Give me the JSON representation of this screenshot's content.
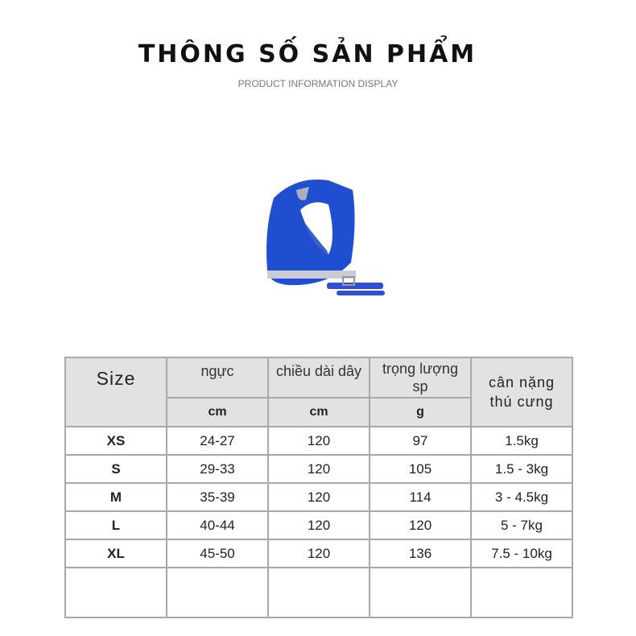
{
  "header": {
    "title": "THÔNG SỐ SẢN PHẨM",
    "subtitle": "PRODUCT INFORMATION DISPLAY"
  },
  "product": {
    "image": "blue mesh dog harness with leash",
    "color": "#1f4fd0"
  },
  "table": {
    "headers": {
      "size": "Size",
      "chest": "ngực",
      "leash_length": "chiều dài dây",
      "weight_line1": "trọng lượng",
      "weight_line2": "sp",
      "pet_weight_line1": "cân nặng",
      "pet_weight_line2": "thú cưng"
    },
    "units": {
      "chest": "cm",
      "leash_length": "cm",
      "weight": "g"
    },
    "rows": [
      {
        "size": "XS",
        "chest": "24-27",
        "leash": "120",
        "weight": "97",
        "pet": "1.5kg"
      },
      {
        "size": "S",
        "chest": "29-33",
        "leash": "120",
        "weight": "105",
        "pet": "1.5 - 3kg"
      },
      {
        "size": "M",
        "chest": "35-39",
        "leash": "120",
        "weight": "114",
        "pet": "3 - 4.5kg"
      },
      {
        "size": "L",
        "chest": "40-44",
        "leash": "120",
        "weight": "120",
        "pet": "5 - 7kg"
      },
      {
        "size": "XL",
        "chest": "45-50",
        "leash": "120",
        "weight": "136",
        "pet": "7.5 - 10kg"
      }
    ]
  }
}
